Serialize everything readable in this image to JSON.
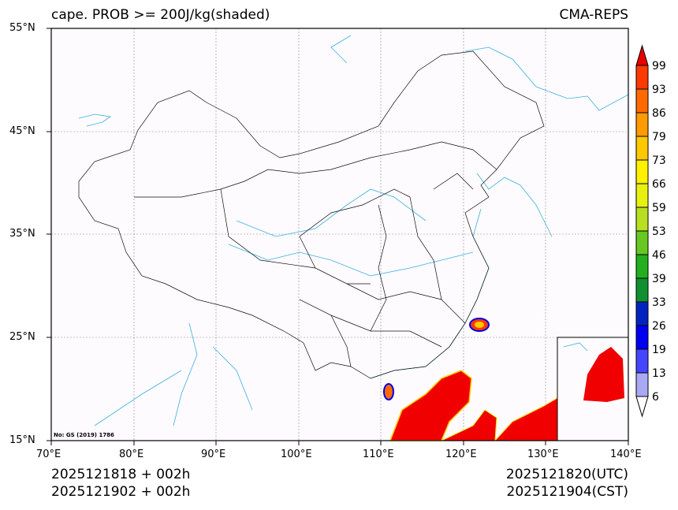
{
  "title_left": "cape. PROB >= 200J/kg(shaded)",
  "title_right": "CMA-REPS",
  "lat_ticks": [
    "55°N",
    "45°N",
    "35°N",
    "25°N",
    "15°N"
  ],
  "lon_ticks": [
    "70°E",
    "80°E",
    "90°E",
    "100°E",
    "110°E",
    "120°E",
    "130°E",
    "140°E"
  ],
  "map_note": "No: GS (2019) 1786",
  "footer": {
    "left1": "2025121818  +  002h",
    "left2": "2025121902  +  002h",
    "right1": "2025121820(UTC)",
    "right2": "2025121904(CST)"
  },
  "colorbar": {
    "labels": [
      "99",
      "93",
      "86",
      "79",
      "73",
      "66",
      "59",
      "53",
      "46",
      "39",
      "33",
      "26",
      "19",
      "13",
      "6"
    ],
    "colors": [
      "#e80000",
      "#ff3a00",
      "#ff6a00",
      "#ff9a00",
      "#ffc800",
      "#fff000",
      "#e8f010",
      "#b8e020",
      "#66c820",
      "#22b020",
      "#109030",
      "#0024c0",
      "#0000f0",
      "#4646ff",
      "#a8a8f4"
    ],
    "under_color": "#ffffff"
  },
  "colors": {
    "border": "#000000",
    "river": "#3ab0e0",
    "grid": "#888888",
    "shade": "#f00000"
  }
}
